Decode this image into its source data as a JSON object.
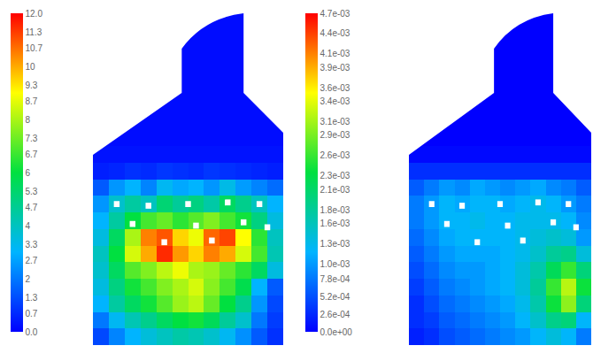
{
  "chart_data": [
    {
      "type": "heatmap",
      "tick_labels": false,
      "zlim": [
        0,
        12
      ],
      "zticks": [
        {
          "value": 0,
          "label": "0.0"
        },
        0.7,
        1.3,
        2,
        2.7,
        3.3,
        4,
        4.7,
        5.3,
        6,
        6.7,
        7.3,
        8,
        8.7,
        9.3,
        10,
        10.7,
        11.3,
        {
          "value": 12,
          "label": "12.0"
        }
      ],
      "cells": [
        [
          null,
          null,
          null,
          null,
          null,
          0.2,
          0.2,
          0.2,
          0.2,
          0.2,
          null,
          null
        ],
        [
          null,
          null,
          null,
          null,
          null,
          0.2,
          0.2,
          0.2,
          0.2,
          0.2,
          null,
          null
        ],
        [
          null,
          null,
          null,
          null,
          null,
          0.2,
          0.2,
          0.2,
          0.2,
          0.2,
          null,
          null
        ],
        [
          null,
          null,
          null,
          null,
          null,
          0.2,
          0.2,
          0.2,
          0.2,
          0.2,
          null,
          null
        ],
        [
          null,
          null,
          null,
          null,
          null,
          0.2,
          0.2,
          0.2,
          0.2,
          0.2,
          null,
          null
        ],
        [
          null,
          null,
          null,
          0.2,
          0.2,
          0.2,
          0.2,
          0.2,
          0.2,
          0.2,
          0.2,
          null
        ],
        [
          null,
          null,
          0.2,
          0.2,
          0.2,
          0.2,
          0.2,
          0.2,
          0.2,
          0.2,
          0.2,
          0.2
        ],
        [
          0.2,
          0.2,
          0.2,
          0.2,
          0.2,
          0.2,
          0.2,
          0.2,
          0.2,
          0.2,
          0.2,
          0.2
        ],
        [
          0.3,
          0.3,
          0.3,
          0.3,
          0.3,
          0.3,
          0.3,
          0.3,
          0.3,
          0.3,
          0.3,
          0.3
        ],
        [
          0.5,
          0.6,
          0.8,
          0.7,
          0.9,
          0.8,
          0.7,
          0.9,
          0.8,
          0.7,
          0.6,
          0.5
        ],
        [
          1.5,
          2.5,
          3.0,
          2.2,
          3.2,
          2.8,
          3.0,
          2.5,
          3.4,
          2.6,
          2.2,
          1.8
        ],
        [
          2.5,
          3.8,
          4.5,
          4.0,
          5.2,
          4.6,
          5.0,
          4.4,
          5.5,
          4.8,
          4.0,
          3.0
        ],
        [
          3.0,
          4.5,
          6.0,
          6.8,
          7.2,
          6.5,
          7.0,
          7.5,
          6.8,
          6.2,
          5.0,
          3.5
        ],
        [
          3.5,
          5.5,
          8.0,
          10.5,
          11.0,
          9.5,
          8.8,
          10.8,
          11.2,
          9.0,
          6.5,
          4.0
        ],
        [
          4.0,
          6.0,
          8.5,
          10.0,
          11.5,
          10.2,
          9.5,
          10.5,
          10.0,
          8.5,
          6.8,
          4.2
        ],
        [
          3.8,
          5.5,
          7.0,
          7.5,
          8.2,
          8.8,
          8.0,
          7.8,
          7.2,
          6.5,
          5.5,
          3.5
        ],
        [
          3.5,
          5.0,
          6.2,
          6.8,
          7.5,
          8.0,
          8.5,
          7.6,
          6.8,
          5.8,
          3.0,
          1.5
        ],
        [
          3.0,
          4.5,
          5.5,
          6.2,
          7.0,
          7.8,
          8.2,
          7.2,
          6.0,
          4.8,
          2.5,
          1.2
        ],
        [
          2.0,
          3.2,
          4.2,
          4.8,
          5.5,
          6.0,
          6.2,
          5.6,
          4.6,
          3.8,
          2.0,
          1.0
        ],
        [
          1.2,
          2.2,
          3.0,
          3.6,
          4.0,
          4.4,
          4.2,
          3.8,
          3.2,
          2.4,
          1.5,
          0.8
        ]
      ]
    },
    {
      "type": "heatmap",
      "tick_labels": false,
      "zlim": [
        0,
        0.0047
      ],
      "zticks": [
        {
          "value": 0,
          "label": "0.0e+00"
        },
        {
          "value": 0.00026,
          "label": "2.6e-04"
        },
        {
          "value": 0.00052,
          "label": "5.2e-04"
        },
        {
          "value": 0.00078,
          "label": "7.8e-04"
        },
        {
          "value": 0.001,
          "label": "1.0e-03"
        },
        {
          "value": 0.0013,
          "label": "1.3e-03"
        },
        {
          "value": 0.0016,
          "label": "1.6e-03"
        },
        {
          "value": 0.0018,
          "label": "1.8e-03"
        },
        {
          "value": 0.0021,
          "label": "2.1e-03"
        },
        {
          "value": 0.0023,
          "label": "2.3e-03"
        },
        {
          "value": 0.0026,
          "label": "2.6e-03"
        },
        {
          "value": 0.0029,
          "label": "2.9e-03"
        },
        {
          "value": 0.0031,
          "label": "3.1e-03"
        },
        {
          "value": 0.0034,
          "label": "3.4e-03"
        },
        {
          "value": 0.0036,
          "label": "3.6e-03"
        },
        {
          "value": 0.0039,
          "label": "3.9e-03"
        },
        {
          "value": 0.0041,
          "label": "4.1e-03"
        },
        {
          "value": 0.0044,
          "label": "4.4e-03"
        },
        {
          "value": 0.0047,
          "label": "4.7e-03"
        }
      ],
      "cells": [
        [
          null,
          null,
          null,
          null,
          null,
          0,
          0,
          0,
          0,
          0,
          null,
          null
        ],
        [
          null,
          null,
          null,
          null,
          null,
          0,
          0,
          0,
          0,
          0,
          null,
          null
        ],
        [
          null,
          null,
          null,
          null,
          null,
          0,
          0,
          0,
          0,
          0,
          null,
          null
        ],
        [
          null,
          null,
          null,
          null,
          null,
          0,
          0,
          0,
          0,
          0,
          null,
          null
        ],
        [
          null,
          null,
          null,
          null,
          null,
          0,
          0,
          0,
          0,
          0,
          null,
          null
        ],
        [
          null,
          null,
          null,
          0,
          0,
          0,
          0,
          0,
          0,
          0,
          0,
          null
        ],
        [
          null,
          null,
          0,
          0,
          0,
          0,
          0,
          0,
          0,
          0,
          0,
          0
        ],
        [
          0,
          0,
          0,
          0,
          0,
          0,
          0,
          0,
          0,
          0,
          0,
          0
        ],
        [
          5e-05,
          5e-05,
          5e-05,
          5e-05,
          5e-05,
          5e-05,
          5e-05,
          5e-05,
          5e-05,
          5e-05,
          5e-05,
          5e-05
        ],
        [
          0.0003,
          0.0003,
          0.0003,
          0.0003,
          0.0003,
          0.0003,
          0.0003,
          0.0003,
          0.0003,
          0.0003,
          0.0003,
          0.0003
        ],
        [
          0.0006,
          0.0008,
          0.001,
          0.0009,
          0.0011,
          0.001,
          0.0009,
          0.001,
          0.0011,
          0.0009,
          0.0008,
          0.0006
        ],
        [
          0.0008,
          0.001,
          0.0012,
          0.0011,
          0.0012,
          0.0012,
          0.0011,
          0.0012,
          0.0013,
          0.0012,
          0.001,
          0.0008
        ],
        [
          0.0008,
          0.001,
          0.0012,
          0.0012,
          0.0013,
          0.0012,
          0.0012,
          0.0013,
          0.0013,
          0.0013,
          0.0012,
          0.0009
        ],
        [
          0.0007,
          0.0009,
          0.0011,
          0.0012,
          0.0012,
          0.0012,
          0.0012,
          0.0013,
          0.0014,
          0.0015,
          0.0014,
          0.001
        ],
        [
          0.0006,
          0.0008,
          0.001,
          0.0011,
          0.0011,
          0.0011,
          0.0012,
          0.0013,
          0.0015,
          0.0018,
          0.0019,
          0.0014
        ],
        [
          0.0005,
          0.0007,
          0.0009,
          0.001,
          0.001,
          0.0011,
          0.0012,
          0.0014,
          0.0017,
          0.0022,
          0.0026,
          0.002
        ],
        [
          0.0004,
          0.0006,
          0.0008,
          0.0009,
          0.001,
          0.0011,
          0.0012,
          0.0014,
          0.0018,
          0.0026,
          0.0032,
          0.0024
        ],
        [
          0.0003,
          0.0005,
          0.0007,
          0.0008,
          0.0009,
          0.001,
          0.0011,
          0.0013,
          0.0017,
          0.0024,
          0.003,
          0.002
        ],
        [
          0.0003,
          0.0004,
          0.0006,
          0.0007,
          0.0008,
          0.0009,
          0.001,
          0.0012,
          0.0015,
          0.0019,
          0.002,
          0.0012
        ],
        [
          0.0002,
          0.0003,
          0.0005,
          0.0006,
          0.0007,
          0.0008,
          0.0009,
          0.001,
          0.0012,
          0.0014,
          0.0012,
          0.0008
        ]
      ]
    }
  ]
}
